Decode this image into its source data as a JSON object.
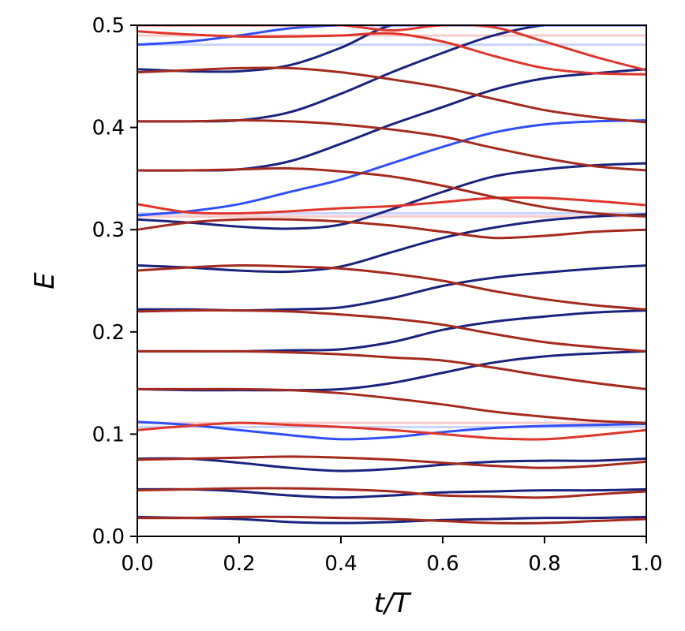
{
  "chart_data": {
    "type": "line",
    "title": "",
    "xlabel": "t/T",
    "ylabel": "E",
    "xlim": [
      0.0,
      1.0
    ],
    "ylim": [
      0.0,
      0.5
    ],
    "x_ticks": [
      "0.0",
      "0.2",
      "0.4",
      "0.6",
      "0.8",
      "1.0"
    ],
    "y_ticks": [
      "0.0",
      "0.1",
      "0.2",
      "0.3",
      "0.4",
      "0.5"
    ],
    "grid": false,
    "legend": "none",
    "colors": {
      "blue_band": "#1a237e",
      "red_band": "#a52a1e",
      "blue_edge": "#2f4fff",
      "red_edge": "#e0352b"
    },
    "x": [
      0.0,
      0.1,
      0.2,
      0.3,
      0.4,
      0.5,
      0.6,
      0.7,
      0.8,
      0.9,
      1.0
    ],
    "series": [
      {
        "color": "blue_band",
        "values": [
          0.019,
          0.018,
          0.017,
          0.014,
          0.013,
          0.014,
          0.016,
          0.017,
          0.018,
          0.018,
          0.019
        ]
      },
      {
        "color": "red_band",
        "values": [
          0.018,
          0.018,
          0.019,
          0.019,
          0.018,
          0.017,
          0.015,
          0.013,
          0.013,
          0.015,
          0.017
        ]
      },
      {
        "color": "blue_band",
        "values": [
          0.046,
          0.046,
          0.044,
          0.04,
          0.038,
          0.04,
          0.043,
          0.044,
          0.045,
          0.045,
          0.046
        ]
      },
      {
        "color": "red_band",
        "values": [
          0.045,
          0.046,
          0.047,
          0.047,
          0.046,
          0.044,
          0.04,
          0.039,
          0.038,
          0.041,
          0.044
        ]
      },
      {
        "color": "blue_band",
        "values": [
          0.076,
          0.076,
          0.072,
          0.067,
          0.064,
          0.066,
          0.07,
          0.073,
          0.074,
          0.074,
          0.076
        ]
      },
      {
        "color": "red_band",
        "values": [
          0.075,
          0.076,
          0.077,
          0.078,
          0.077,
          0.075,
          0.072,
          0.069,
          0.067,
          0.069,
          0.073
        ]
      },
      {
        "color": "blue_edge",
        "values": [
          0.112,
          0.109,
          0.104,
          0.099,
          0.095,
          0.097,
          0.102,
          0.106,
          0.108,
          0.109,
          0.11
        ]
      },
      {
        "color": "red_edge",
        "values": [
          0.104,
          0.108,
          0.111,
          0.109,
          0.107,
          0.104,
          0.1,
          0.096,
          0.095,
          0.099,
          0.104
        ]
      },
      {
        "color": "blue_band",
        "values": [
          0.144,
          0.143,
          0.143,
          0.143,
          0.144,
          0.15,
          0.16,
          0.17,
          0.176,
          0.179,
          0.181
        ]
      },
      {
        "color": "red_band",
        "values": [
          0.144,
          0.144,
          0.144,
          0.143,
          0.14,
          0.135,
          0.129,
          0.122,
          0.117,
          0.113,
          0.111
        ]
      },
      {
        "color": "blue_band",
        "values": [
          0.181,
          0.181,
          0.181,
          0.182,
          0.183,
          0.19,
          0.202,
          0.21,
          0.215,
          0.219,
          0.221
        ]
      },
      {
        "color": "red_band",
        "values": [
          0.181,
          0.181,
          0.181,
          0.18,
          0.178,
          0.175,
          0.172,
          0.165,
          0.157,
          0.15,
          0.144
        ]
      },
      {
        "color": "blue_band",
        "values": [
          0.222,
          0.222,
          0.221,
          0.222,
          0.224,
          0.233,
          0.245,
          0.253,
          0.258,
          0.262,
          0.265
        ]
      },
      {
        "color": "red_band",
        "values": [
          0.22,
          0.221,
          0.221,
          0.22,
          0.217,
          0.213,
          0.207,
          0.198,
          0.19,
          0.185,
          0.181
        ]
      },
      {
        "color": "blue_band",
        "values": [
          0.265,
          0.263,
          0.26,
          0.259,
          0.264,
          0.278,
          0.292,
          0.302,
          0.309,
          0.313,
          0.315
        ]
      },
      {
        "color": "red_band",
        "values": [
          0.26,
          0.263,
          0.265,
          0.264,
          0.262,
          0.257,
          0.25,
          0.24,
          0.232,
          0.226,
          0.222
        ]
      },
      {
        "color": "blue_band",
        "values": [
          0.31,
          0.307,
          0.303,
          0.301,
          0.305,
          0.32,
          0.337,
          0.352,
          0.359,
          0.363,
          0.365
        ]
      },
      {
        "color": "red_band",
        "values": [
          0.3,
          0.307,
          0.31,
          0.31,
          0.308,
          0.304,
          0.298,
          0.292,
          0.294,
          0.298,
          0.3
        ]
      },
      {
        "color": "blue_edge",
        "values": [
          0.314,
          0.318,
          0.325,
          0.337,
          0.349,
          0.365,
          0.381,
          0.395,
          0.403,
          0.406,
          0.407
        ]
      },
      {
        "color": "red_edge",
        "values": [
          0.325,
          0.317,
          0.316,
          0.318,
          0.321,
          0.323,
          0.327,
          0.331,
          0.331,
          0.328,
          0.324
        ]
      },
      {
        "color": "blue_band",
        "values": [
          0.358,
          0.358,
          0.359,
          0.367,
          0.384,
          0.403,
          0.42,
          0.437,
          0.448,
          0.453,
          0.457
        ]
      },
      {
        "color": "red_band",
        "values": [
          0.358,
          0.358,
          0.359,
          0.36,
          0.357,
          0.352,
          0.343,
          0.332,
          0.322,
          0.316,
          0.313
        ]
      },
      {
        "color": "blue_band",
        "values": [
          0.406,
          0.406,
          0.407,
          0.415,
          0.433,
          0.454,
          0.473,
          0.49,
          0.5,
          0.5,
          0.5
        ]
      },
      {
        "color": "red_band",
        "values": [
          0.406,
          0.406,
          0.407,
          0.406,
          0.403,
          0.398,
          0.391,
          0.38,
          0.37,
          0.362,
          0.358
        ]
      },
      {
        "color": "blue_band",
        "values": [
          0.457,
          0.455,
          0.455,
          0.461,
          0.478,
          0.5,
          0.5,
          0.5,
          0.5,
          0.5,
          0.5
        ]
      },
      {
        "color": "red_band",
        "values": [
          0.454,
          0.456,
          0.458,
          0.458,
          0.454,
          0.447,
          0.439,
          0.428,
          0.417,
          0.41,
          0.405
        ]
      },
      {
        "color": "blue_edge",
        "values": [
          0.481,
          0.484,
          0.49,
          0.497,
          0.5,
          0.5,
          0.5,
          0.5,
          0.5,
          0.5,
          0.5
        ]
      },
      {
        "color": "red_edge",
        "values": [
          0.494,
          0.491,
          0.489,
          0.489,
          0.49,
          0.492,
          0.484,
          0.47,
          0.458,
          0.453,
          0.452
        ]
      },
      {
        "color": "red_edge",
        "values": [
          0.5,
          0.5,
          0.5,
          0.5,
          0.5,
          0.495,
          0.5,
          0.498,
          0.484,
          0.469,
          0.456
        ]
      }
    ],
    "faint_levels": [
      {
        "color": "red_edge",
        "y": 0.49,
        "x_range": [
          0.0,
          1.0
        ]
      },
      {
        "color": "blue_edge",
        "y": 0.481,
        "x_range": [
          0.0,
          1.0
        ]
      },
      {
        "color": "red_edge",
        "y": 0.313,
        "x_range": [
          0.0,
          1.0
        ]
      },
      {
        "color": "blue_edge",
        "y": 0.316,
        "x_range": [
          0.0,
          1.0
        ]
      },
      {
        "color": "red_edge",
        "y": 0.111,
        "x_range": [
          0.0,
          1.0
        ]
      },
      {
        "color": "blue_edge",
        "y": 0.107,
        "x_range": [
          0.0,
          1.0
        ]
      }
    ]
  }
}
